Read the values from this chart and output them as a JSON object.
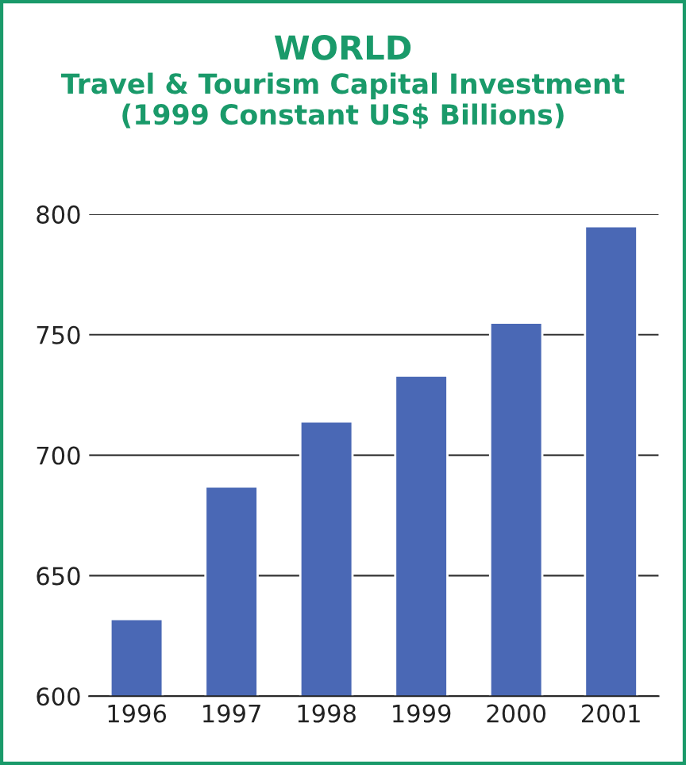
{
  "chart_data": {
    "type": "bar",
    "title": "WORLD",
    "subtitle": "Travel & Tourism Capital Investment\n(1999 Constant US$ Billions)",
    "categories": [
      "1996",
      "1997",
      "1998",
      "1999",
      "2000",
      "2001"
    ],
    "values": [
      632,
      687,
      714,
      733,
      755,
      795
    ],
    "color": "#4a68b5",
    "ylim": [
      600,
      800
    ],
    "yticks": [
      600,
      650,
      700,
      750,
      800
    ],
    "grid": "y"
  }
}
